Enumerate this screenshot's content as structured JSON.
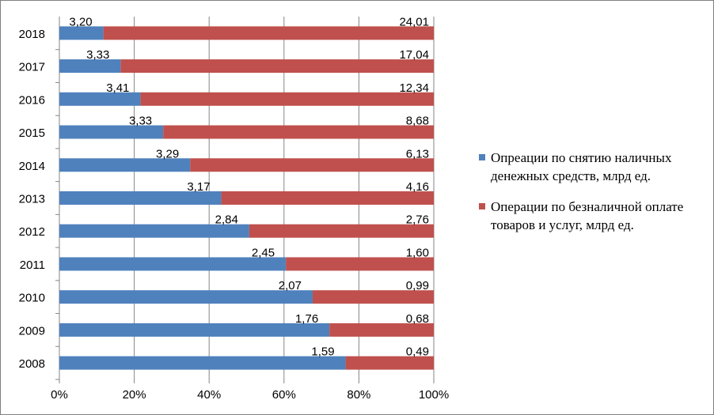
{
  "chart_data": {
    "type": "bar",
    "orientation": "horizontal",
    "stacked": "percent",
    "categories": [
      "2008",
      "2009",
      "2010",
      "2011",
      "2012",
      "2013",
      "2014",
      "2015",
      "2016",
      "2017",
      "2018"
    ],
    "series": [
      {
        "name": "Опреации по снятию наличных денежных средств, млрд ед.",
        "color": "#4f81bd",
        "values": [
          1.59,
          1.76,
          2.07,
          2.45,
          2.84,
          3.17,
          3.29,
          3.33,
          3.41,
          3.33,
          3.2
        ],
        "labels": [
          "1,59",
          "1,76",
          "2,07",
          "2,45",
          "2,84",
          "3,17",
          "3,29",
          "3,33",
          "3,41",
          "3,33",
          "3,20"
        ]
      },
      {
        "name": "Операции по безналичной оплате товаров и услуг, млрд ед.",
        "color": "#c0504d",
        "values": [
          0.49,
          0.68,
          0.99,
          1.6,
          2.76,
          4.16,
          6.13,
          8.68,
          12.34,
          17.04,
          24.01
        ],
        "labels": [
          "0,49",
          "0,68",
          "0,99",
          "1,60",
          "2,76",
          "4,16",
          "6,13",
          "8,68",
          "12,34",
          "17,04",
          "24,01"
        ]
      }
    ],
    "xticks": [
      "0%",
      "20%",
      "40%",
      "60%",
      "80%",
      "100%"
    ],
    "xlim": [
      0,
      100
    ],
    "grid": "vertical",
    "legend": "right"
  }
}
